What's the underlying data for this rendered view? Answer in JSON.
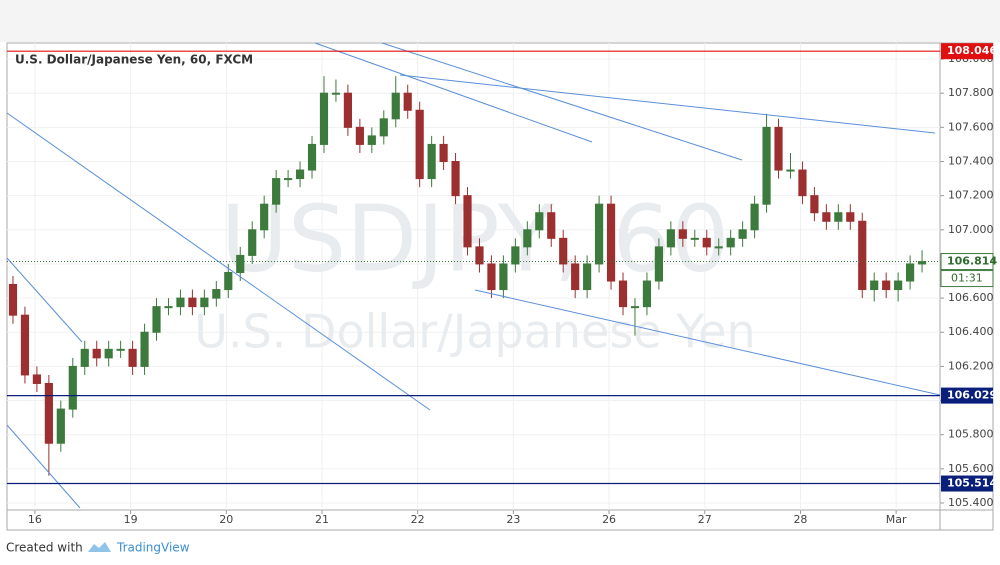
{
  "chart_data": {
    "type": "candlestick",
    "title": "U.S. Dollar/Japanese Yen, 60, FXCM",
    "watermark": "USDJPY, 60",
    "watermark_subtitle": "U.S. Dollar/Japanese Yen",
    "up_color": "#3d7a3d",
    "down_color": "#9c2f2f",
    "x": [
      1.5,
      4.5,
      7.5,
      10.5,
      13.5,
      16.5,
      19.5,
      22.5,
      25.5,
      28.5,
      31.5,
      34.5,
      37.5,
      40.5,
      43.5,
      46.5,
      49.5,
      52.5,
      55.5,
      58.5,
      61.5,
      64.5,
      67.5,
      70.5,
      73.5,
      76.5,
      79.5,
      82.5,
      85.5,
      88.5,
      91.5,
      94.5,
      97.5,
      100.5,
      103.5,
      106.5,
      109.5,
      112.5,
      115.5,
      118.5,
      121.5,
      124.5,
      127.5,
      130.5,
      133.5,
      136.5,
      139.5,
      142.5,
      145.5,
      148.5,
      151.5,
      154.5,
      157.5,
      160.5,
      163.5,
      166.5,
      169.5,
      172.5,
      175.5,
      178.5,
      181.5,
      184.5,
      187.5,
      190.5,
      193.5,
      196.5,
      199.5,
      202.5,
      205.5,
      208.5,
      211.5,
      214.5,
      217.5,
      220.5,
      223.5,
      226.5,
      229.5
    ],
    "open": [
      106.68,
      106.5,
      106.15,
      106.1,
      105.75,
      105.95,
      106.2,
      106.3,
      106.25,
      106.3,
      106.3,
      106.2,
      106.4,
      106.55,
      106.55,
      106.6,
      106.55,
      106.6,
      106.65,
      106.75,
      106.85,
      107.0,
      107.15,
      107.3,
      107.3,
      107.35,
      107.5,
      107.8,
      107.8,
      107.6,
      107.5,
      107.55,
      107.65,
      107.8,
      107.7,
      107.3,
      107.5,
      107.4,
      107.2,
      106.9,
      106.8,
      106.65,
      106.8,
      106.9,
      107.0,
      107.1,
      106.95,
      106.8,
      106.65,
      106.8,
      107.15,
      106.7,
      106.55,
      106.55,
      106.7,
      106.9,
      107.0,
      106.95,
      106.95,
      106.9,
      106.9,
      106.95,
      107.0,
      107.15,
      107.6,
      107.35,
      107.35,
      107.2,
      107.1,
      107.05,
      107.1,
      107.05,
      106.65,
      106.7,
      106.65,
      106.7,
      106.8
    ],
    "high": [
      106.73,
      106.55,
      106.2,
      106.15,
      106.0,
      106.25,
      106.35,
      106.35,
      106.35,
      106.35,
      106.35,
      106.45,
      106.6,
      106.6,
      106.65,
      106.65,
      106.65,
      106.7,
      106.8,
      106.9,
      107.05,
      107.2,
      107.35,
      107.35,
      107.4,
      107.55,
      107.9,
      107.88,
      107.85,
      107.65,
      107.6,
      107.7,
      107.9,
      107.85,
      107.75,
      107.55,
      107.55,
      107.45,
      107.25,
      106.95,
      106.85,
      106.85,
      106.95,
      107.05,
      107.15,
      107.15,
      107.0,
      106.85,
      106.85,
      107.2,
      107.2,
      106.75,
      106.6,
      106.75,
      106.95,
      107.05,
      107.05,
      107.0,
      107.0,
      106.95,
      107.0,
      107.05,
      107.2,
      107.68,
      107.65,
      107.45,
      107.4,
      107.25,
      107.15,
      107.15,
      107.15,
      107.1,
      106.75,
      106.75,
      106.75,
      106.85,
      106.88
    ],
    "low": [
      106.45,
      106.1,
      106.05,
      105.56,
      105.7,
      105.9,
      106.15,
      106.2,
      106.2,
      106.25,
      106.15,
      106.15,
      106.35,
      106.5,
      106.5,
      106.5,
      106.5,
      106.55,
      106.6,
      106.7,
      106.8,
      106.95,
      107.1,
      107.25,
      107.25,
      107.3,
      107.45,
      107.75,
      107.55,
      107.45,
      107.45,
      107.5,
      107.6,
      107.65,
      107.25,
      107.25,
      107.35,
      107.15,
      106.85,
      106.75,
      106.6,
      106.6,
      106.75,
      106.85,
      106.95,
      106.9,
      106.75,
      106.6,
      106.6,
      106.75,
      106.65,
      106.5,
      106.38,
      106.5,
      106.65,
      106.85,
      106.9,
      106.9,
      106.85,
      106.85,
      106.85,
      106.9,
      106.95,
      107.1,
      107.3,
      107.3,
      107.15,
      107.05,
      107.0,
      107.0,
      107.0,
      106.6,
      106.58,
      106.6,
      106.58,
      106.65,
      106.75
    ],
    "close": [
      106.5,
      106.15,
      106.1,
      105.75,
      105.95,
      106.2,
      106.3,
      106.25,
      106.3,
      106.3,
      106.2,
      106.4,
      106.55,
      106.55,
      106.6,
      106.55,
      106.6,
      106.65,
      106.75,
      106.85,
      107.0,
      107.15,
      107.3,
      107.3,
      107.35,
      107.5,
      107.8,
      107.8,
      107.6,
      107.5,
      107.55,
      107.65,
      107.8,
      107.7,
      107.3,
      107.5,
      107.4,
      107.2,
      106.9,
      106.8,
      106.65,
      106.8,
      106.9,
      107.0,
      107.1,
      106.95,
      106.8,
      106.65,
      106.8,
      107.15,
      106.7,
      106.55,
      106.55,
      106.7,
      106.9,
      107.0,
      106.95,
      106.95,
      106.9,
      106.9,
      106.95,
      107.0,
      107.15,
      107.6,
      107.35,
      107.35,
      107.2,
      107.1,
      107.05,
      107.1,
      107.05,
      106.65,
      106.7,
      106.65,
      106.7,
      106.8,
      106.814
    ],
    "xlim": [
      0,
      234
    ],
    "xticks": [
      {
        "value": 7,
        "label": "16"
      },
      {
        "value": 31,
        "label": "19"
      },
      {
        "value": 55,
        "label": "20"
      },
      {
        "value": 79,
        "label": "21"
      },
      {
        "value": 103,
        "label": "22"
      },
      {
        "value": 127,
        "label": "23"
      },
      {
        "value": 151,
        "label": "26"
      },
      {
        "value": 175,
        "label": "27"
      },
      {
        "value": 199,
        "label": "28"
      },
      {
        "value": 223,
        "label": "Mar"
      }
    ],
    "ylim": [
      105.359,
      108.094
    ],
    "yticks": [
      {
        "value": 105.4,
        "label": "105.400"
      },
      {
        "value": 105.6,
        "label": "105.600"
      },
      {
        "value": 105.8,
        "label": "105.800"
      },
      {
        "value": 106.0,
        "label": "106.000"
      },
      {
        "value": 106.2,
        "label": "106.200"
      },
      {
        "value": 106.4,
        "label": "106.400"
      },
      {
        "value": 106.6,
        "label": "106.600"
      },
      {
        "value": 106.8,
        "label": "106.800"
      },
      {
        "value": 107.0,
        "label": "107.000"
      },
      {
        "value": 107.2,
        "label": "107.200"
      },
      {
        "value": 107.4,
        "label": "107.400"
      },
      {
        "value": 107.6,
        "label": "107.600"
      },
      {
        "value": 107.8,
        "label": "107.800"
      },
      {
        "value": 108.0,
        "label": "108.000"
      }
    ],
    "hlines": [
      {
        "value": 108.046,
        "color": "#e01010"
      },
      {
        "value": 106.029,
        "color": "#0a1f7a"
      },
      {
        "value": 105.514,
        "color": "#0a1f7a"
      }
    ],
    "last_price": 106.814,
    "last_price_color": "#3d7a3d",
    "countdown": "01:31",
    "footer_prefix": "Created with",
    "footer_brand": "TradingView"
  }
}
